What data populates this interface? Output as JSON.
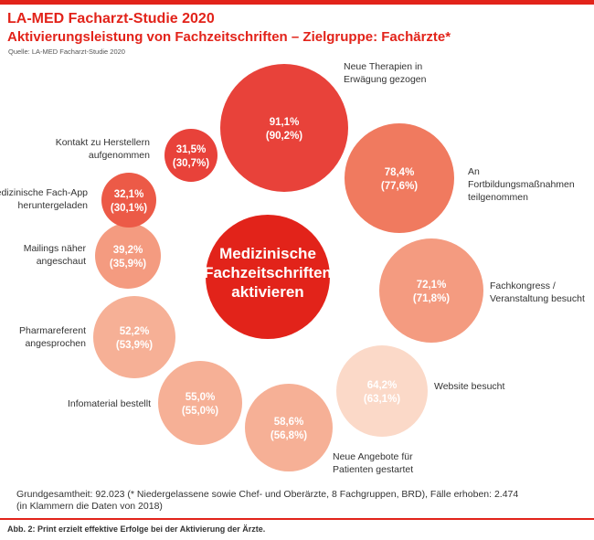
{
  "header": {
    "title": "LA-MED Facharzt-Studie 2020",
    "subtitle": "Aktivierungsleistung von Fachzeitschriften – Zielgruppe: Fachärzte*",
    "source": "Quelle: LA-MED Facharzt-Studie 2020"
  },
  "colors": {
    "brand": "#e2231a",
    "center": "#e2231a",
    "scale": [
      "#e8423a",
      "#ec5a47",
      "#f07a5f",
      "#f49b80",
      "#f6b096",
      "#fbd9c8"
    ]
  },
  "chart_data": {
    "type": "bubble",
    "unit": "%",
    "center_label": "Medizinische Fachzeitschriften aktivieren",
    "items": [
      {
        "label": "Neue Therapien in Erwägung gezogen",
        "value_2020": "91,1%",
        "value_2018": "(90,2%)",
        "value": 91.1,
        "value_prev": 90.2
      },
      {
        "label": "An Fortbildungsmaßnahmen teilgenommen",
        "value_2020": "78,4%",
        "value_2018": "(77,6%)",
        "value": 78.4,
        "value_prev": 77.6
      },
      {
        "label": "Fachkongress / Veranstaltung besucht",
        "value_2020": "72,1%",
        "value_2018": "(71,8%)",
        "value": 72.1,
        "value_prev": 71.8
      },
      {
        "label": "Website besucht",
        "value_2020": "64,2%",
        "value_2018": "(63,1%)",
        "value": 64.2,
        "value_prev": 63.1
      },
      {
        "label": "Neue Angebote für Patienten gestartet",
        "value_2020": "58,6%",
        "value_2018": "(56,8%)",
        "value": 58.6,
        "value_prev": 56.8
      },
      {
        "label": "Infomaterial bestellt",
        "value_2020": "55,0%",
        "value_2018": "(55,0%)",
        "value": 55.0,
        "value_prev": 55.0
      },
      {
        "label": "Pharmareferent angesprochen",
        "value_2020": "52,2%",
        "value_2018": "(53,9%)",
        "value": 52.2,
        "value_prev": 53.9
      },
      {
        "label": "Mailings näher angeschaut",
        "value_2020": "39,2%",
        "value_2018": "(35,9%)",
        "value": 39.2,
        "value_prev": 35.9
      },
      {
        "label": "Medizinische Fach-App heruntergeladen",
        "value_2020": "32,1%",
        "value_2018": "(30,1%)",
        "value": 32.1,
        "value_prev": 30.1
      },
      {
        "label": "Kontakt zu Herstellern aufgenommen",
        "value_2020": "31,5%",
        "value_2018": "(30,7%)",
        "value": 31.5,
        "value_prev": 30.7
      }
    ]
  },
  "footnote": {
    "line1": "Grundgesamtheit: 92.023 (* Niedergelassene sowie Chef- und Oberärzte, 8 Fachgruppen, BRD), Fälle erhoben: 2.474",
    "line2": "(in Klammern die Daten von 2018)"
  },
  "caption": "Abb. 2: Print erzielt effektive Erfolge bei der Aktivierung der Ärzte."
}
